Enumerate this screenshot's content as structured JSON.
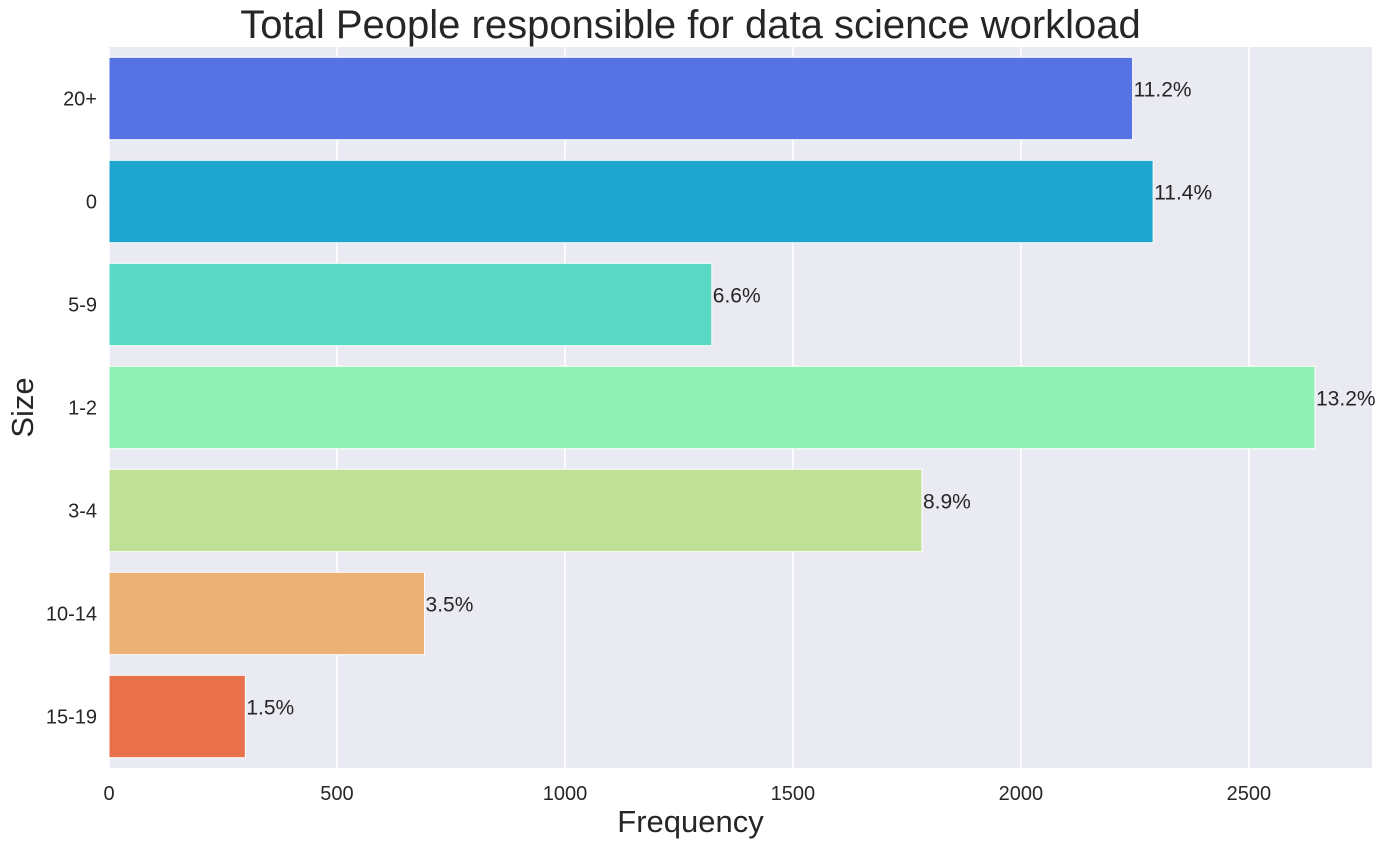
{
  "chart_data": {
    "type": "bar",
    "orientation": "horizontal",
    "title": "Total People responsible for data science workload",
    "xlabel": "Frequency",
    "ylabel": "Size",
    "xlim": [
      0,
      2770
    ],
    "xticks": [
      0,
      500,
      1000,
      1500,
      2000,
      2500
    ],
    "grid": true,
    "categories": [
      "20+",
      "0",
      "5-9",
      "1-2",
      "3-4",
      "10-14",
      "15-19"
    ],
    "values": [
      2245,
      2290,
      1322,
      2645,
      1783,
      692,
      299
    ],
    "labels": [
      "11.2%",
      "11.4%",
      "6.6%",
      "13.2%",
      "8.9%",
      "3.5%",
      "1.5%"
    ],
    "colors": [
      "#5773e3",
      "#1ea6cf",
      "#59d8c4",
      "#91f0b5",
      "#c0df97",
      "#ecb174",
      "#e8704a"
    ],
    "background": "#eaeaf2"
  }
}
